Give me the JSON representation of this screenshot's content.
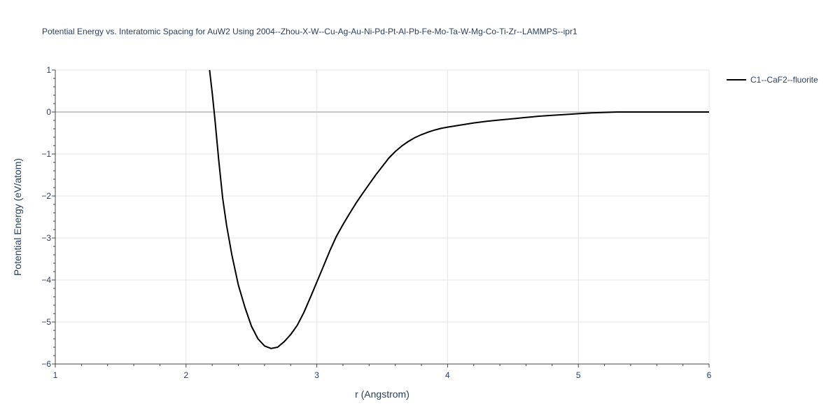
{
  "chart_data": {
    "type": "line",
    "title": "Potential Energy vs. Interatomic Spacing for AuW2 Using 2004--Zhou-X-W--Cu-Ag-Au-Ni-Pd-Pt-Al-Pb-Fe-Mo-Ta-W-Mg-Co-Ti-Zr--LAMMPS--ipr1",
    "xlabel": "r (Angstrom)",
    "ylabel": "Potential Energy (eV/atom)",
    "xlim": [
      1,
      6
    ],
    "ylim": [
      -6,
      1
    ],
    "x_ticks": [
      1,
      2,
      3,
      4,
      5,
      6
    ],
    "y_ticks": [
      1,
      0,
      -1,
      -2,
      -3,
      -4,
      -5,
      -6
    ],
    "x_tick_labels": [
      "1",
      "2",
      "3",
      "4",
      "5",
      "6"
    ],
    "y_tick_labels": [
      "1",
      "0",
      "−1",
      "−2",
      "−3",
      "−4",
      "−5",
      "−6"
    ],
    "grid": true,
    "legend_position": "top-right",
    "series": [
      {
        "name": "C1--CaF2--fluorite",
        "color": "#000000",
        "x": [
          2.18,
          2.2,
          2.22,
          2.25,
          2.28,
          2.31,
          2.35,
          2.4,
          2.45,
          2.5,
          2.55,
          2.6,
          2.65,
          2.7,
          2.75,
          2.8,
          2.85,
          2.9,
          2.95,
          3.0,
          3.05,
          3.1,
          3.15,
          3.2,
          3.25,
          3.3,
          3.35,
          3.4,
          3.45,
          3.5,
          3.55,
          3.6,
          3.65,
          3.7,
          3.75,
          3.8,
          3.85,
          3.9,
          3.95,
          4.0,
          4.1,
          4.2,
          4.3,
          4.4,
          4.5,
          4.6,
          4.7,
          4.8,
          4.9,
          5.0,
          5.1,
          5.2,
          5.3,
          5.5,
          5.8,
          6.0
        ],
        "y": [
          1.0,
          0.45,
          -0.15,
          -1.15,
          -2.05,
          -2.7,
          -3.4,
          -4.12,
          -4.65,
          -5.1,
          -5.4,
          -5.57,
          -5.63,
          -5.6,
          -5.47,
          -5.3,
          -5.08,
          -4.78,
          -4.42,
          -4.05,
          -3.68,
          -3.3,
          -2.96,
          -2.68,
          -2.42,
          -2.17,
          -1.94,
          -1.72,
          -1.5,
          -1.3,
          -1.1,
          -0.94,
          -0.81,
          -0.7,
          -0.61,
          -0.54,
          -0.48,
          -0.43,
          -0.39,
          -0.36,
          -0.31,
          -0.26,
          -0.22,
          -0.19,
          -0.16,
          -0.13,
          -0.1,
          -0.08,
          -0.06,
          -0.04,
          -0.02,
          -0.01,
          0.0,
          0.0,
          0.0,
          0.0
        ]
      }
    ]
  }
}
